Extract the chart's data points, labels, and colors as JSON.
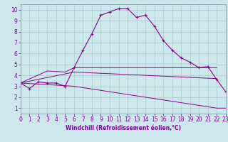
{
  "xlabel": "Windchill (Refroidissement éolien,°C)",
  "xlim": [
    0,
    23
  ],
  "ylim": [
    0.5,
    10.5
  ],
  "xticks": [
    0,
    1,
    2,
    3,
    4,
    5,
    6,
    7,
    8,
    9,
    10,
    11,
    12,
    13,
    14,
    15,
    16,
    17,
    18,
    19,
    20,
    21,
    22,
    23
  ],
  "yticks": [
    1,
    2,
    3,
    4,
    5,
    6,
    7,
    8,
    9,
    10
  ],
  "bg_color": "#cce8ec",
  "line_color": "#8b008b",
  "grid_color": "#aacccc",
  "line1_x": [
    0,
    1,
    2,
    3,
    4,
    5,
    6,
    7,
    8,
    9,
    10,
    11,
    12,
    13,
    14,
    15,
    16,
    17,
    18,
    19,
    20,
    21,
    22,
    23
  ],
  "line1_y": [
    3.3,
    2.8,
    3.4,
    3.3,
    3.3,
    3.0,
    4.7,
    6.3,
    7.8,
    9.5,
    9.8,
    10.1,
    10.1,
    9.3,
    9.5,
    8.5,
    7.2,
    6.3,
    5.6,
    5.2,
    4.7,
    4.8,
    3.6,
    2.5
  ],
  "line2_x": [
    0,
    3,
    5,
    6,
    22
  ],
  "line2_y": [
    3.3,
    4.4,
    4.3,
    4.7,
    4.7
  ],
  "line3_x": [
    0,
    6,
    22
  ],
  "line3_y": [
    3.3,
    4.3,
    3.7
  ],
  "line4_x": [
    0,
    6,
    22,
    23
  ],
  "line4_y": [
    3.3,
    3.0,
    1.0,
    1.0
  ],
  "xlabel_color": "#7b00a0",
  "tick_color": "#7b00a0",
  "tick_fontsize": 5.5,
  "xlabel_fontsize": 5.5,
  "xlabel_fontweight": "bold"
}
